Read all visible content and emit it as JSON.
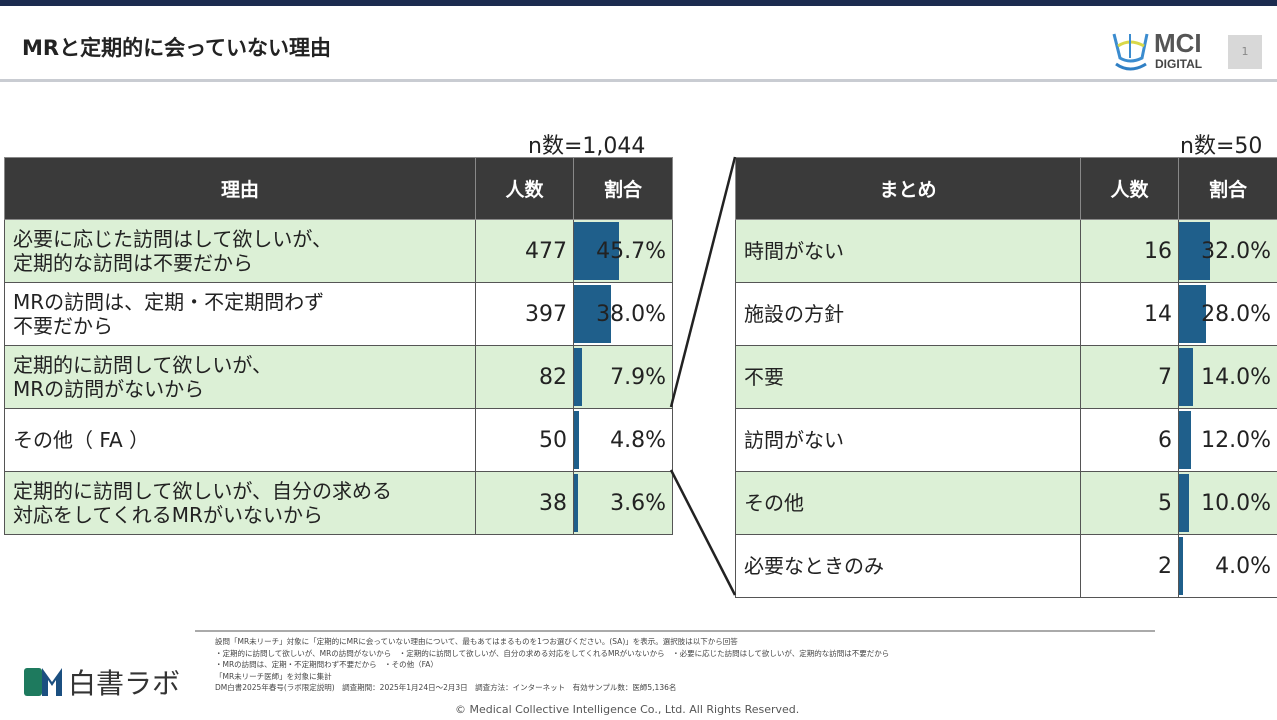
{
  "header": {
    "title": "MRと定期的に会っていない理由",
    "logo_main": "MCI",
    "logo_sub": "DIGITAL",
    "page_number": "1"
  },
  "left": {
    "n_label": "n数=1,044",
    "columns": [
      "理由",
      "人数",
      "割合"
    ],
    "rows": [
      {
        "reason": [
          "必要に応じた訪問はして欲しいが、",
          "定期的な訪問は不要だから"
        ],
        "count": "477",
        "pct": 45.7,
        "pct_label": "45.7%"
      },
      {
        "reason": [
          "MRの訪問は、定期・不定期問わず",
          "不要だから"
        ],
        "count": "397",
        "pct": 38.0,
        "pct_label": "38.0%"
      },
      {
        "reason": [
          "定期的に訪問して欲しいが、",
          "MRの訪問がないから"
        ],
        "count": "82",
        "pct": 7.9,
        "pct_label": "7.9%"
      },
      {
        "reason": [
          "その他（ FA ）"
        ],
        "count": "50",
        "pct": 4.8,
        "pct_label": "4.8%"
      },
      {
        "reason": [
          "定期的に訪問して欲しいが、自分の求める",
          "対応をしてくれるMRがいないから"
        ],
        "count": "38",
        "pct": 3.6,
        "pct_label": "3.6%"
      }
    ]
  },
  "right": {
    "n_label": "n数=50",
    "columns": [
      "まとめ",
      "人数",
      "割合"
    ],
    "rows": [
      {
        "reason": [
          "時間がない"
        ],
        "count": "16",
        "pct": 32.0,
        "pct_label": "32.0%"
      },
      {
        "reason": [
          "施設の方針"
        ],
        "count": "14",
        "pct": 28.0,
        "pct_label": "28.0%"
      },
      {
        "reason": [
          "不要"
        ],
        "count": "7",
        "pct": 14.0,
        "pct_label": "14.0%"
      },
      {
        "reason": [
          "訪問がない"
        ],
        "count": "6",
        "pct": 12.0,
        "pct_label": "12.0%"
      },
      {
        "reason": [
          "その他"
        ],
        "count": "5",
        "pct": 10.0,
        "pct_label": "10.0%"
      },
      {
        "reason": [
          "必要なときのみ"
        ],
        "count": "2",
        "pct": 4.0,
        "pct_label": "4.0%"
      }
    ]
  },
  "footer": {
    "notes": [
      "設問「MR未リーチ」対象に「定期的にMRに会っていない理由について、最もあてはまるものを1つお選びください。(SA)」を表示。選択肢は以下から回答",
      "・定期的に訪問して欲しいが、MRの訪問がないから　・定期的に訪問して欲しいが、自分の求める対応をしてくれるMRがいないから　・必要に応じた訪問はして欲しいが、定期的な訪問は不要だから",
      "・MRの訪問は、定期・不定期問わず不要だから　・その他（FA）",
      "「MR未リーチ医師」を対象に集計",
      "DM白書2025年春号(ラボ限定説明)　調査期間：2025年1月24日～2月3日　調査方法：インターネット　有効サンプル数：医師5,136名"
    ],
    "copyright": "© Medical Collective Intelligence Co., Ltd.  All Rights Reserved.",
    "brand": "白書ラボ"
  },
  "colors": {
    "bar": "#1f5f8b",
    "row_green": "#dcf0d6",
    "header_bg": "#3a3a3a"
  }
}
